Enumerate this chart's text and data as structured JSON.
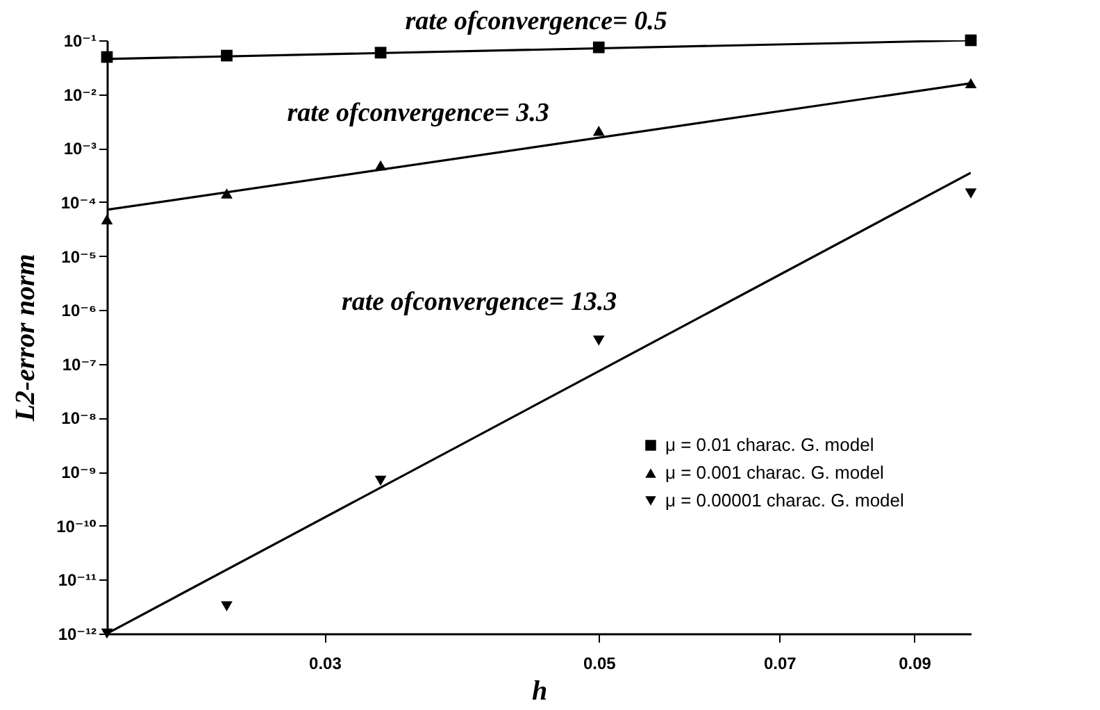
{
  "chart_data": {
    "type": "scatter",
    "xlabel": "h",
    "ylabel": "L2-error norm",
    "log": "xy",
    "xlim": [
      0.02,
      0.1
    ],
    "xticks": [
      0.03,
      0.05,
      0.07,
      0.09
    ],
    "ylim": [
      1e-12,
      0.1
    ],
    "yticks": [
      {
        "value": 1e-12,
        "label": "10⁻¹²"
      },
      {
        "value": 1e-11,
        "label": "10⁻¹¹"
      },
      {
        "value": 1e-10,
        "label": "10⁻¹⁰"
      },
      {
        "value": 1e-09,
        "label": "10⁻⁹"
      },
      {
        "value": 1e-08,
        "label": "10⁻⁸"
      },
      {
        "value": 1e-07,
        "label": "10⁻⁷"
      },
      {
        "value": 1e-06,
        "label": "10⁻⁶"
      },
      {
        "value": 1e-05,
        "label": "10⁻⁵"
      },
      {
        "value": 0.0001,
        "label": "10⁻⁴"
      },
      {
        "value": 0.001,
        "label": "10⁻³"
      },
      {
        "value": 0.01,
        "label": "10⁻²"
      },
      {
        "value": 0.1,
        "label": "10⁻¹"
      }
    ],
    "grid": false,
    "legend": "bottom right",
    "annotations": [
      "rate ofconvergence= 0.5",
      "rate ofconvergence= 3.3",
      "rate ofconvergence= 13.3"
    ],
    "series": [
      {
        "type": "line",
        "color": "#000000",
        "line_style": "solid",
        "x": [
          0.02,
          0.1
        ],
        "values": [
          0.045,
          0.1
        ]
      },
      {
        "type": "line",
        "color": "#000000",
        "line_style": "solid",
        "x": [
          0.02,
          0.1
        ],
        "values": [
          7.2e-05,
          0.016
        ]
      },
      {
        "type": "line",
        "color": "#000000",
        "line_style": "solid",
        "x": [
          0.02,
          0.1
        ],
        "values": [
          1e-12,
          0.00035
        ]
      },
      {
        "name": "μ = 0.01 charac. G. model",
        "color": "#000000",
        "marker": "square",
        "x": [
          0.02,
          0.025,
          0.0333,
          0.05,
          0.1
        ],
        "values": [
          0.049,
          0.052,
          0.059,
          0.074,
          0.1
        ]
      },
      {
        "name": "μ = 0.001 charac. G. model",
        "color": "#000000",
        "marker": "triangle",
        "x": [
          0.02,
          0.025,
          0.0333,
          0.05,
          0.1
        ],
        "values": [
          4.8e-05,
          0.000145,
          0.00048,
          0.0021,
          0.016
        ]
      },
      {
        "name": "μ = 0.00001 charac. G. model",
        "color": "#000000",
        "marker": "triangle-down",
        "x": [
          0.02,
          0.025,
          0.0333,
          0.05,
          0.1
        ],
        "values": [
          1e-12,
          3.2e-12,
          6.8e-10,
          2.7e-07,
          0.000145
        ]
      }
    ]
  }
}
